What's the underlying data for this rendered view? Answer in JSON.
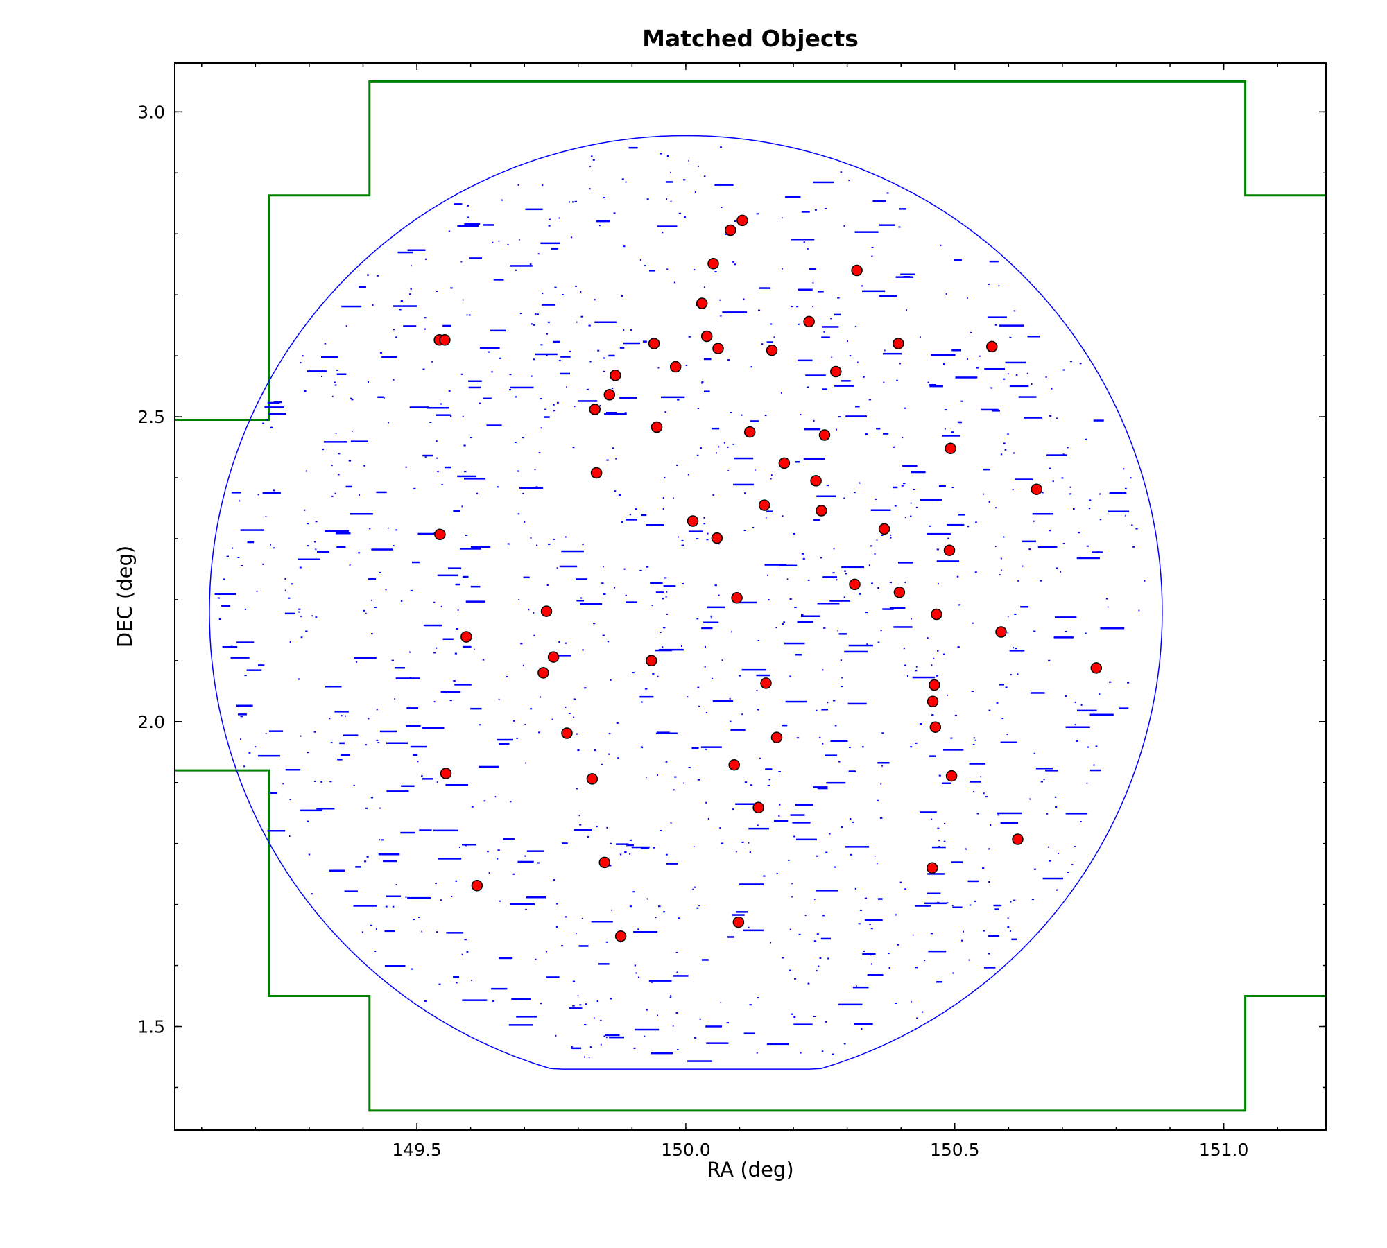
{
  "chart_data": {
    "type": "scatter",
    "title": "Matched Objects",
    "xlabel": "RA (deg)",
    "ylabel": "DEC (deg)",
    "xlim": [
      149.05,
      151.19
    ],
    "ylim": [
      1.33,
      3.08
    ],
    "xticks": [
      149.5,
      150.0,
      150.5,
      151.0
    ],
    "xtick_labels": [
      "149.5",
      "150.0",
      "150.5",
      "151.0"
    ],
    "yticks": [
      1.5,
      2.0,
      2.5,
      3.0
    ],
    "ytick_labels": [
      "1.5",
      "2.0",
      "2.5",
      "3.0"
    ],
    "grid": false,
    "colors": {
      "points": "#ff0000",
      "point_edge": "#000000",
      "footprint": "#0000ff",
      "coverage": "#008000"
    },
    "series": [
      {
        "marker": "circle",
        "x": [
          149.542,
          149.552,
          150.105,
          150.083,
          150.051,
          150.318,
          150.03,
          150.039,
          149.941,
          150.06,
          150.16,
          150.395,
          150.569,
          150.229,
          149.981,
          149.869,
          150.279,
          149.858,
          149.831,
          149.946,
          150.119,
          150.258,
          150.492,
          149.834,
          150.183,
          150.242,
          150.652,
          150.146,
          150.252,
          149.543,
          150.013,
          150.058,
          150.369,
          150.49,
          150.314,
          150.397,
          150.095,
          149.741,
          150.466,
          150.586,
          149.592,
          149.754,
          149.936,
          149.735,
          150.763,
          150.149,
          150.462,
          150.459,
          150.464,
          149.779,
          150.169,
          150.09,
          149.554,
          150.494,
          149.826,
          150.135,
          150.617,
          149.849,
          150.458,
          149.612,
          150.098,
          149.879
        ],
        "y": [
          2.626,
          2.626,
          2.822,
          2.806,
          2.751,
          2.74,
          2.686,
          2.632,
          2.62,
          2.612,
          2.609,
          2.62,
          2.615,
          2.656,
          2.582,
          2.568,
          2.574,
          2.536,
          2.512,
          2.483,
          2.475,
          2.47,
          2.448,
          2.408,
          2.424,
          2.395,
          2.381,
          2.355,
          2.346,
          2.307,
          2.329,
          2.301,
          2.316,
          2.281,
          2.225,
          2.212,
          2.203,
          2.181,
          2.176,
          2.147,
          2.139,
          2.106,
          2.1,
          2.08,
          2.088,
          2.063,
          2.06,
          2.033,
          1.991,
          1.981,
          1.974,
          1.929,
          1.915,
          1.911,
          1.906,
          1.859,
          1.807,
          1.769,
          1.76,
          1.731,
          1.671,
          1.648
        ]
      }
    ],
    "coverage_outline": {
      "x": [
        149.412,
        151.04,
        151.04,
        151.228,
        151.228,
        151.408,
        151.408,
        151.228,
        151.228,
        151.04,
        151.04,
        149.412,
        149.412,
        149.225,
        149.225,
        149.04,
        149.04,
        149.225,
        149.225,
        149.412,
        149.412
      ],
      "y": [
        3.05,
        3.05,
        2.863,
        2.863,
        2.679,
        2.679,
        1.735,
        1.735,
        1.55,
        1.55,
        1.362,
        1.362,
        1.55,
        1.55,
        1.92,
        1.92,
        2.495,
        2.495,
        2.863,
        2.863,
        3.05
      ]
    }
  }
}
